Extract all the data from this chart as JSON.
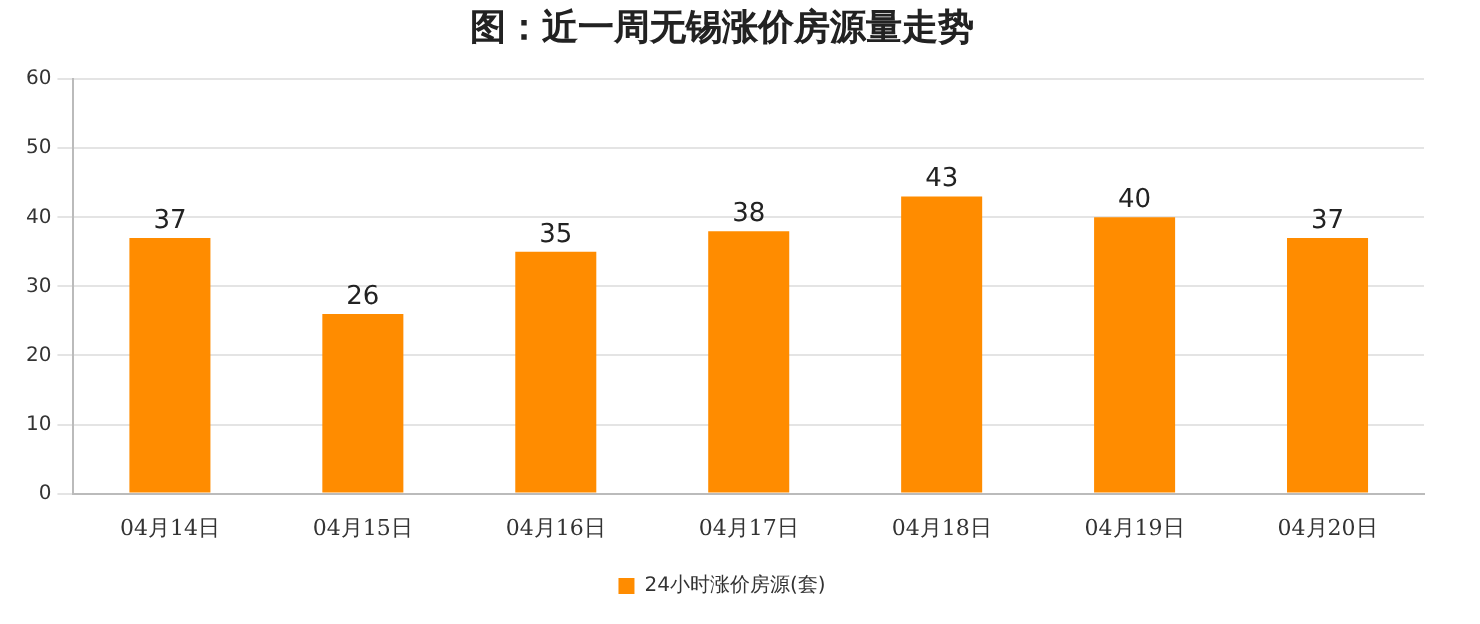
{
  "chart_data": {
    "type": "bar",
    "title": "图：近一周无锡涨价房源量走势",
    "categories": [
      "04月14日",
      "04月15日",
      "04月16日",
      "04月17日",
      "04月18日",
      "04月19日",
      "04月20日"
    ],
    "series": [
      {
        "name": "24小时涨价房源(套)",
        "color": "#ff8c00",
        "values": [
          37,
          26,
          35,
          38,
          43,
          40,
          37
        ]
      }
    ],
    "ylim": [
      0,
      60
    ],
    "yticks": [
      0,
      10,
      20,
      30,
      40,
      50,
      60
    ],
    "grid": "y",
    "legend": "bottom",
    "data_labels": true
  }
}
